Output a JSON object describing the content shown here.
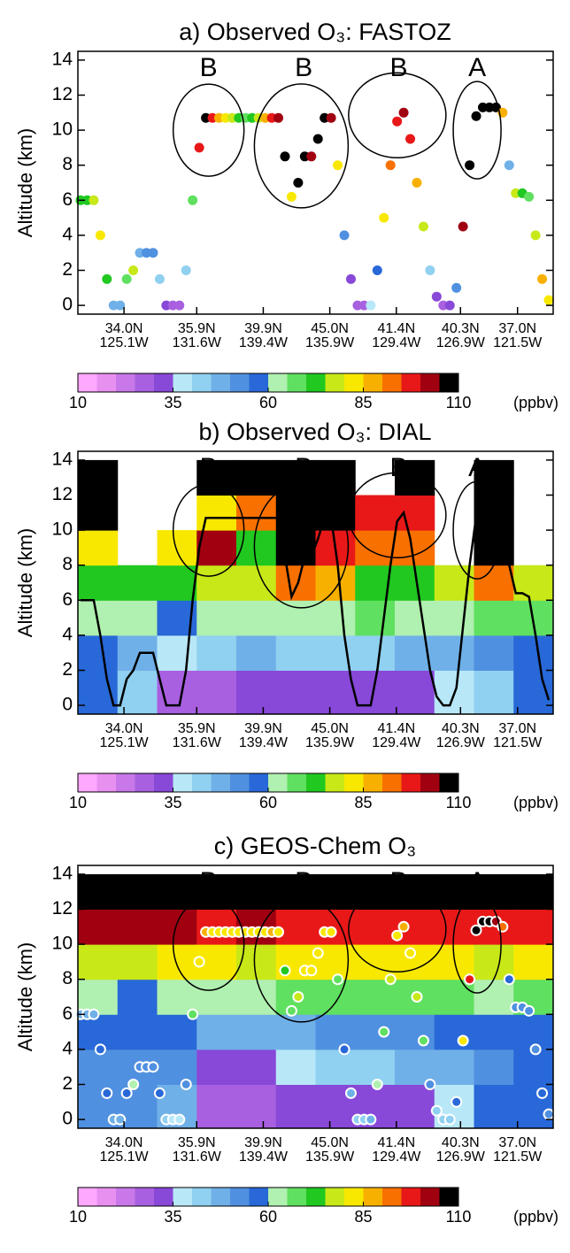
{
  "chart_data": [
    {
      "type": "curtain",
      "title": "a) Observed O₃: FASTOZ",
      "ylabel": "Altitude (km)",
      "ylim": [
        -0.5,
        14.5
      ],
      "yticks": [
        0,
        2,
        4,
        6,
        8,
        10,
        12,
        14
      ],
      "xtick_lat": [
        "34.0N",
        "35.9N",
        "39.9N",
        "45.0N",
        "41.4N",
        "40.3N",
        "37.0N"
      ],
      "xtick_lon": [
        "125.1W",
        "131.6W",
        "139.4W",
        "135.9W",
        "129.4W",
        "126.9W",
        "121.5W"
      ],
      "annotations": [
        {
          "text": "B",
          "color": "#1f1fe0"
        },
        {
          "text": "B",
          "color": "#1f1fe0"
        },
        {
          "text": "B",
          "color": "#1f1fe0"
        },
        {
          "text": "A",
          "color": "#e01f1f"
        }
      ],
      "track_style": "points",
      "track_altitude": [
        6,
        6,
        6,
        4,
        1.5,
        0,
        0,
        1.5,
        2,
        3,
        3,
        3,
        1.5,
        0,
        0,
        0,
        2,
        6,
        9,
        10.7,
        10.7,
        10.7,
        10.7,
        10.7,
        10.7,
        10.7,
        10.7,
        10.7,
        10.7,
        10.7,
        10.7,
        8.5,
        6.2,
        7,
        8.5,
        8.5,
        9.5,
        10.7,
        10.7,
        8,
        4,
        1.5,
        0,
        0,
        0,
        2,
        5,
        8,
        10.5,
        11,
        9.5,
        7,
        4.5,
        2,
        0.5,
        0,
        0,
        1,
        4.5,
        8,
        10.8,
        11.3,
        11.3,
        11.3,
        11,
        8,
        6.4,
        6.4,
        6.2,
        4,
        1.5,
        0.3
      ],
      "track_ozone": [
        70,
        72,
        75,
        80,
        70,
        45,
        45,
        65,
        75,
        48,
        50,
        52,
        40,
        30,
        28,
        28,
        40,
        65,
        95,
        105,
        95,
        85,
        80,
        75,
        70,
        65,
        70,
        75,
        88,
        98,
        100,
        105,
        82,
        107,
        107,
        100,
        107,
        107,
        100,
        80,
        50,
        30,
        28,
        28,
        35,
        55,
        80,
        90,
        98,
        100,
        95,
        85,
        75,
        40,
        30,
        28,
        30,
        50,
        100,
        105,
        106,
        107,
        107,
        107,
        85,
        45,
        75,
        70,
        65,
        75,
        85,
        82
      ],
      "colorbar": {
        "clim": [
          10,
          110
        ],
        "ticks": [
          10,
          35,
          60,
          85,
          110
        ],
        "unit": "(ppbv)",
        "colors": [
          "#ffa8ff",
          "#e890f0",
          "#c878e8",
          "#a860e0",
          "#8848d8",
          "#b8e8f8",
          "#90d0f0",
          "#70b0e8",
          "#5090e0",
          "#2868d8",
          "#b0f0b0",
          "#60e060",
          "#20c820",
          "#c8e818",
          "#f8e800",
          "#f8b000",
          "#f87000",
          "#e81818",
          "#a00010",
          "#000000"
        ]
      }
    },
    {
      "type": "curtain",
      "title": "b) Observed O₃: DIAL",
      "ylabel": "Altitude (km)",
      "ylim": [
        -0.5,
        14.5
      ],
      "yticks": [
        0,
        2,
        4,
        6,
        8,
        10,
        12,
        14
      ],
      "xtick_lat": [
        "34.0N",
        "35.9N",
        "39.9N",
        "45.0N",
        "41.4N",
        "40.3N",
        "37.0N"
      ],
      "xtick_lon": [
        "125.1W",
        "131.6W",
        "139.4W",
        "135.9W",
        "129.4W",
        "126.9W",
        "121.5W"
      ],
      "annotations": [
        {
          "text": "B",
          "color": "#1f1fe0"
        },
        {
          "text": "B",
          "color": "#1f1fe0"
        },
        {
          "text": "B",
          "color": "#1f1fe0"
        },
        {
          "text": "A",
          "color": "#e01f1f"
        }
      ],
      "track_style": "line",
      "track_altitude": [
        6,
        6,
        6,
        4,
        1.5,
        0,
        0,
        1.5,
        2,
        3,
        3,
        3,
        1.5,
        0,
        0,
        0,
        2,
        6,
        9,
        10.7,
        10.7,
        10.7,
        10.7,
        10.7,
        10.7,
        10.7,
        10.7,
        10.7,
        10.7,
        10.7,
        10.7,
        8.5,
        6.2,
        7,
        8.5,
        8.5,
        9.5,
        10.7,
        10.7,
        8,
        4,
        1.5,
        0,
        0,
        0,
        2,
        5,
        8,
        10.5,
        11,
        9.5,
        7,
        4.5,
        2,
        0.5,
        0,
        0,
        1,
        4.5,
        8,
        10.8,
        11.3,
        11.3,
        11.3,
        11,
        8,
        6.4,
        6.4,
        6.2,
        4,
        1.5,
        0.3
      ],
      "field_alt_edges": [
        0,
        2,
        4,
        6,
        8,
        10,
        12,
        14
      ],
      "field": [
        [
          55,
          55,
          60,
          70,
          80,
          105,
          105
        ],
        [
          40,
          48,
          62,
          72,
          null,
          null,
          null
        ],
        [
          28,
          38,
          58,
          72,
          80,
          null,
          null
        ],
        [
          28,
          40,
          60,
          75,
          100,
          80,
          105
        ],
        [
          30,
          45,
          62,
          75,
          70,
          90,
          105
        ],
        [
          30,
          40,
          60,
          90,
          105,
          105,
          105
        ],
        [
          30,
          40,
          62,
          85,
          95,
          105,
          105
        ],
        [
          30,
          42,
          65,
          72,
          90,
          95,
          null
        ],
        [
          30,
          45,
          60,
          72,
          90,
          98,
          105
        ],
        [
          35,
          48,
          62,
          75,
          null,
          null,
          null
        ],
        [
          40,
          50,
          65,
          90,
          105,
          105,
          105
        ],
        [
          55,
          55,
          65,
          75,
          null,
          null,
          null
        ]
      ],
      "colorbar": {
        "clim": [
          10,
          110
        ],
        "ticks": [
          10,
          35,
          60,
          85,
          110
        ],
        "unit": "(ppbv)",
        "colors": [
          "#ffa8ff",
          "#e890f0",
          "#c878e8",
          "#a860e0",
          "#8848d8",
          "#b8e8f8",
          "#90d0f0",
          "#70b0e8",
          "#5090e0",
          "#2868d8",
          "#b0f0b0",
          "#60e060",
          "#20c820",
          "#c8e818",
          "#f8e800",
          "#f8b000",
          "#f87000",
          "#e81818",
          "#a00010",
          "#000000"
        ]
      }
    },
    {
      "type": "curtain",
      "title": "c) GEOS-Chem O₃",
      "ylabel": "Altitude (km)",
      "ylim": [
        -0.5,
        14.5
      ],
      "yticks": [
        0,
        2,
        4,
        6,
        8,
        10,
        12,
        14
      ],
      "xtick_lat": [
        "34.0N",
        "35.9N",
        "39.9N",
        "45.0N",
        "41.4N",
        "40.3N",
        "37.0N"
      ],
      "xtick_lon": [
        "125.1W",
        "131.6W",
        "139.4W",
        "135.9W",
        "129.4W",
        "126.9W",
        "121.5W"
      ],
      "annotations": [
        {
          "text": "B",
          "color": "#1f1fe0"
        },
        {
          "text": "B",
          "color": "#1f1fe0"
        },
        {
          "text": "B",
          "color": "#1f1fe0"
        },
        {
          "text": "A",
          "color": "#e01f1f"
        }
      ],
      "track_style": "outlined-points",
      "track_altitude": [
        6,
        6,
        6,
        4,
        1.5,
        0,
        0,
        1.5,
        2,
        3,
        3,
        3,
        1.5,
        0,
        0,
        0,
        2,
        6,
        9,
        10.7,
        10.7,
        10.7,
        10.7,
        10.7,
        10.7,
        10.7,
        10.7,
        10.7,
        10.7,
        10.7,
        10.7,
        8.5,
        6.2,
        7,
        8.5,
        8.5,
        9.5,
        10.7,
        10.7,
        8,
        4,
        1.5,
        0,
        0,
        0,
        2,
        5,
        8,
        10.5,
        11,
        9.5,
        7,
        4.5,
        2,
        0.5,
        0,
        0,
        1,
        4.5,
        8,
        10.8,
        11.3,
        11.3,
        11.3,
        11,
        8,
        6.4,
        6.4,
        6.2,
        4,
        1.5,
        0.3
      ],
      "track_ozone": [
        45,
        45,
        45,
        55,
        58,
        48,
        48,
        58,
        60,
        52,
        52,
        52,
        55,
        40,
        38,
        38,
        50,
        65,
        80,
        85,
        82,
        80,
        82,
        80,
        80,
        82,
        80,
        80,
        82,
        85,
        82,
        70,
        68,
        78,
        80,
        80,
        82,
        82,
        80,
        65,
        55,
        45,
        40,
        40,
        45,
        60,
        68,
        78,
        82,
        85,
        82,
        75,
        65,
        50,
        42,
        40,
        42,
        55,
        80,
        95,
        105,
        106,
        106,
        104,
        90,
        55,
        50,
        50,
        50,
        52,
        55,
        52
      ],
      "field_alt_edges": [
        0,
        2,
        4,
        6,
        8,
        10,
        12,
        14
      ],
      "field": [
        [
          50,
          52,
          55,
          60,
          75,
          100,
          105
        ],
        [
          50,
          52,
          55,
          58,
          75,
          100,
          105
        ],
        [
          48,
          52,
          55,
          62,
          80,
          100,
          105
        ],
        [
          28,
          30,
          48,
          62,
          80,
          95,
          105
        ],
        [
          28,
          30,
          45,
          62,
          75,
          100,
          105
        ],
        [
          30,
          35,
          48,
          65,
          80,
          95,
          105
        ],
        [
          30,
          40,
          50,
          65,
          80,
          95,
          105
        ],
        [
          30,
          40,
          50,
          65,
          80,
          95,
          105
        ],
        [
          30,
          45,
          52,
          65,
          80,
          95,
          105
        ],
        [
          35,
          48,
          55,
          68,
          80,
          95,
          105
        ],
        [
          55,
          50,
          55,
          62,
          75,
          95,
          105
        ],
        [
          55,
          55,
          58,
          65,
          80,
          95,
          105
        ]
      ],
      "colorbar": {
        "clim": [
          10,
          110
        ],
        "ticks": [
          10,
          35,
          60,
          85,
          110
        ],
        "unit": "(ppbv)",
        "colors": [
          "#ffa8ff",
          "#e890f0",
          "#c878e8",
          "#a860e0",
          "#8848d8",
          "#b8e8f8",
          "#90d0f0",
          "#70b0e8",
          "#5090e0",
          "#2868d8",
          "#b0f0b0",
          "#60e060",
          "#20c820",
          "#c8e818",
          "#f8e800",
          "#f8b000",
          "#f87000",
          "#e81818",
          "#a00010",
          "#000000"
        ]
      }
    }
  ]
}
